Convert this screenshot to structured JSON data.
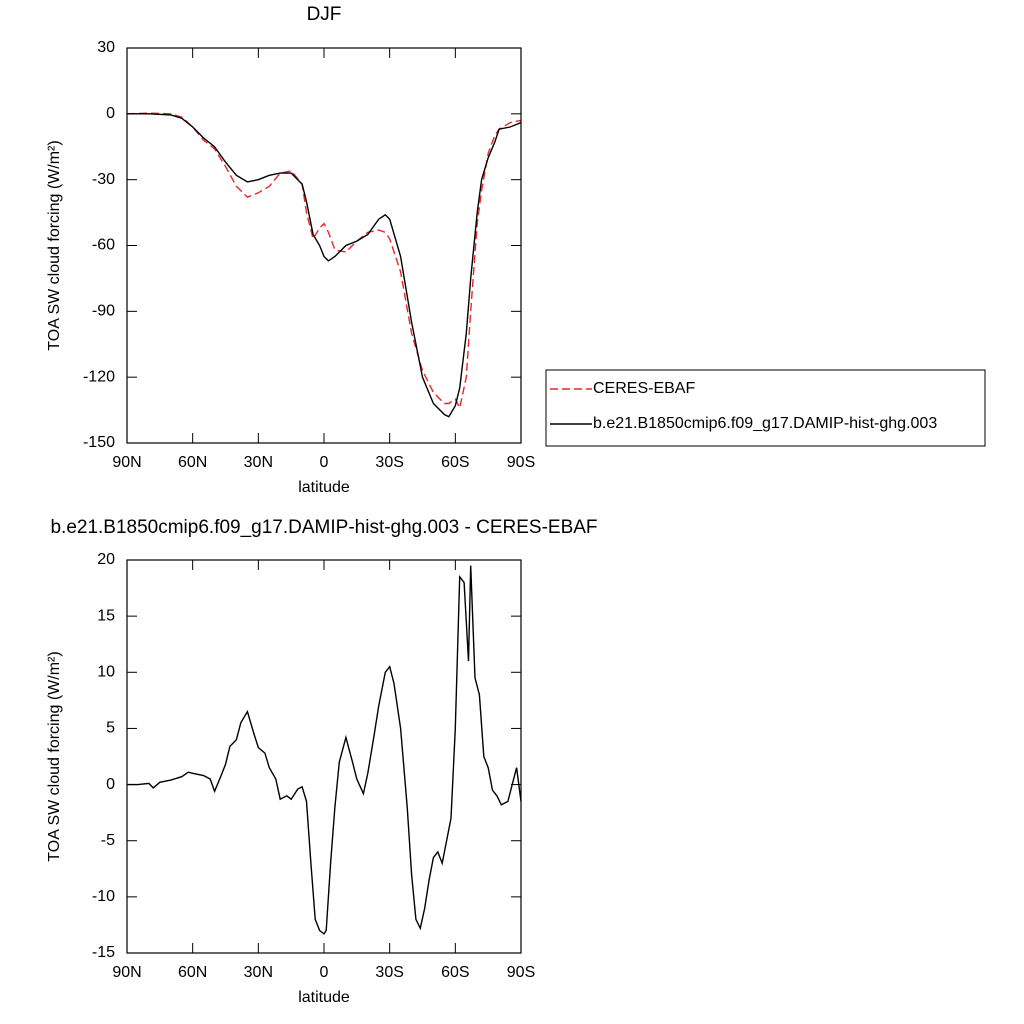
{
  "chart_data": [
    {
      "type": "line",
      "title": "DJF",
      "xlabel": "latitude",
      "ylabel": "TOA SW cloud forcing (W/m²)",
      "x": [
        90,
        80,
        70,
        65,
        60,
        55,
        50,
        45,
        40,
        35,
        30,
        25,
        20,
        15,
        10,
        8,
        5,
        2,
        0,
        -2,
        -5,
        -10,
        -15,
        -20,
        -25,
        -28,
        -30,
        -35,
        -40,
        -45,
        -50,
        -55,
        -57,
        -60,
        -62,
        -65,
        -67,
        -70,
        -72,
        -75,
        -78,
        -80,
        -85,
        -90
      ],
      "series": [
        {
          "name": "CERES-EBAF",
          "color": "#e8262b",
          "dashed": true,
          "values": [
            0,
            0.3,
            0,
            -1.5,
            -6,
            -12,
            -16,
            -24,
            -33,
            -38,
            -36,
            -33,
            -27,
            -26,
            -32,
            -45,
            -57,
            -52,
            -50,
            -54,
            -62,
            -63,
            -58,
            -54,
            -53,
            -54,
            -57,
            -72,
            -100,
            -117,
            -127,
            -132,
            -132,
            -130,
            -134,
            -120,
            -90,
            -50,
            -35,
            -18,
            -10,
            -7,
            -4,
            -3
          ]
        },
        {
          "name": "b.e21.B1850cmip6.f09_g17.DAMIP-hist-ghg.003",
          "color": "#000000",
          "dashed": false,
          "values": [
            0,
            0,
            -0.5,
            -2,
            -6,
            -11,
            -15,
            -22,
            -28,
            -31,
            -30,
            -28,
            -27,
            -27,
            -32,
            -40,
            -55,
            -60,
            -65,
            -67,
            -65,
            -60,
            -58,
            -55,
            -48,
            -46,
            -48,
            -65,
            -95,
            -120,
            -132,
            -137,
            -138,
            -133,
            -125,
            -100,
            -75,
            -45,
            -30,
            -20,
            -13,
            -7,
            -6,
            -4
          ]
        }
      ],
      "xlim": [
        90,
        -90
      ],
      "xticks": [
        {
          "value": 90,
          "label": "90N"
        },
        {
          "value": 60,
          "label": "60N"
        },
        {
          "value": 30,
          "label": "30N"
        },
        0,
        {
          "value": -30,
          "label": "30S"
        },
        {
          "value": -60,
          "label": "60S"
        },
        {
          "value": -90,
          "label": "90S"
        }
      ],
      "ylim": [
        -150,
        30
      ],
      "yticks": [
        -150,
        -120,
        -90,
        -60,
        -30,
        0,
        30
      ]
    },
    {
      "type": "line",
      "title": "b.e21.B1850cmip6.f09_g17.DAMIP-hist-ghg.003 - CERES-EBAF",
      "xlabel": "latitude",
      "ylabel": "TOA SW cloud forcing (W/m²)",
      "x": [
        90,
        85,
        80,
        78,
        75,
        70,
        65,
        62,
        60,
        55,
        52,
        50,
        47,
        45,
        43,
        40,
        38,
        35,
        32,
        30,
        27,
        25,
        22,
        20,
        17,
        15,
        12,
        10,
        8,
        6,
        4,
        2,
        0,
        -1,
        -3,
        -5,
        -7,
        -10,
        -13,
        -15,
        -18,
        -20,
        -23,
        -25,
        -28,
        -30,
        -32,
        -35,
        -38,
        -40,
        -42,
        -44,
        -46,
        -48,
        -50,
        -52,
        -54,
        -56,
        -58,
        -60,
        -62,
        -64,
        -66,
        -67,
        -69,
        -71,
        -73,
        -75,
        -77,
        -79,
        -81,
        -84,
        -86,
        -88,
        -90
      ],
      "values": [
        0,
        0,
        0.1,
        -0.3,
        0.2,
        0.4,
        0.7,
        1.1,
        1,
        0.8,
        0.5,
        -0.6,
        0.8,
        1.8,
        3.4,
        4,
        5.5,
        6.5,
        4.5,
        3.3,
        2.8,
        1.5,
        0.5,
        -1.3,
        -1,
        -1.3,
        -0.4,
        -0.2,
        -1.5,
        -7,
        -12,
        -13,
        -13.3,
        -13,
        -7,
        -2,
        2,
        4.2,
        2,
        0.5,
        -0.8,
        1,
        4.5,
        7,
        10,
        10.5,
        9,
        5,
        -2,
        -8,
        -12,
        -12.8,
        -11,
        -8.5,
        -6.5,
        -6,
        -7,
        -5,
        -3,
        5,
        18.5,
        18,
        11,
        19.5,
        9.5,
        8,
        2.5,
        1.5,
        -0.5,
        -1,
        -1.8,
        -1.5,
        0,
        1.5,
        -1.5
      ],
      "color": "#000000",
      "xlim": [
        90,
        -90
      ],
      "xticks": [
        {
          "value": 90,
          "label": "90N"
        },
        {
          "value": 60,
          "label": "60N"
        },
        {
          "value": 30,
          "label": "30N"
        },
        0,
        {
          "value": -30,
          "label": "30S"
        },
        {
          "value": -60,
          "label": "60S"
        },
        {
          "value": -90,
          "label": "90S"
        }
      ],
      "ylim": [
        -15,
        20
      ],
      "yticks": [
        -15,
        -10,
        -5,
        0,
        5,
        10,
        15,
        20
      ]
    }
  ]
}
